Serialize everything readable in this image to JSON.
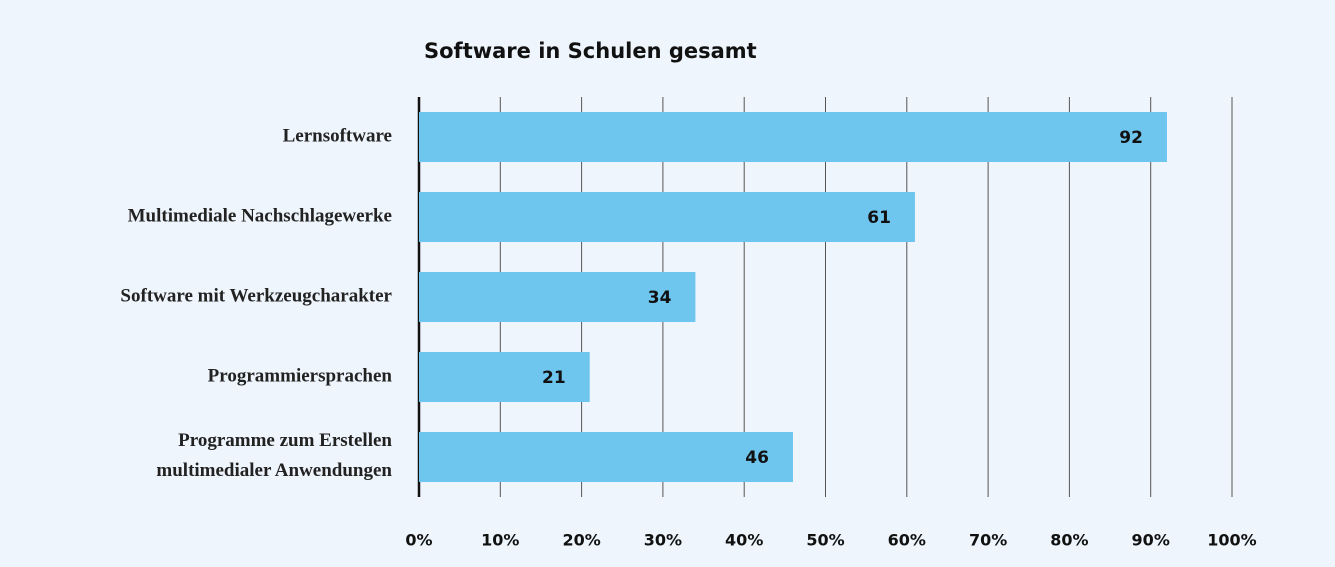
{
  "chart_data": {
    "type": "bar",
    "orientation": "horizontal",
    "title": "Software in Schulen gesamt",
    "categories": [
      "Lernsoftware",
      "Multimediale Nachschlagewerke",
      "Software mit Werkzeugcharakter",
      "Programmiersprachen",
      "Programme zum Erstellen\nmultimedialer Anwendungen"
    ],
    "values": [
      92,
      61,
      34,
      21,
      46
    ],
    "color": "#6ec6ef",
    "xlim": [
      0,
      100
    ],
    "xticks": [
      {
        "value": 0,
        "label": "0%"
      },
      {
        "value": 10,
        "label": "10%"
      },
      {
        "value": 20,
        "label": "20%"
      },
      {
        "value": 30,
        "label": "30%"
      },
      {
        "value": 40,
        "label": "40%"
      },
      {
        "value": 50,
        "label": "50%"
      },
      {
        "value": 60,
        "label": "60%"
      },
      {
        "value": 70,
        "label": "70%"
      },
      {
        "value": 80,
        "label": "80%"
      },
      {
        "value": 90,
        "label": "90%"
      },
      {
        "value": 100,
        "label": "100%"
      }
    ],
    "grid": true
  }
}
